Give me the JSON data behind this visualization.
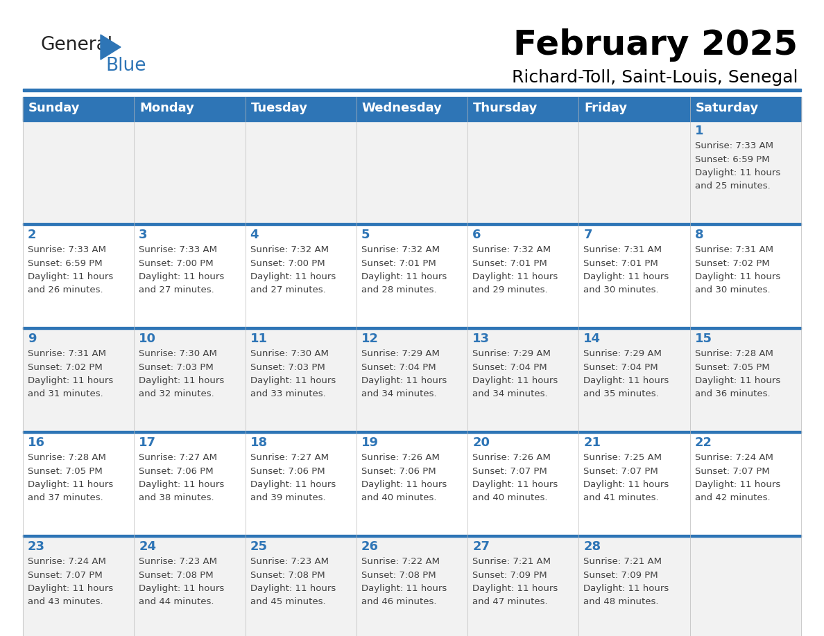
{
  "title": "February 2025",
  "subtitle": "Richard-Toll, Saint-Louis, Senegal",
  "days_of_week": [
    "Sunday",
    "Monday",
    "Tuesday",
    "Wednesday",
    "Thursday",
    "Friday",
    "Saturday"
  ],
  "header_bg": "#2E75B6",
  "header_text": "#FFFFFF",
  "cell_bg_light": "#F2F2F2",
  "cell_bg_white": "#FFFFFF",
  "separator_color": "#2E75B6",
  "text_color_dark": "#404040",
  "text_color_num": "#2E75B6",
  "logo_general_color": "#222222",
  "logo_blue_color": "#2E75B6",
  "calendar_data": [
    [
      {
        "day": "",
        "sunrise": "",
        "sunset": "",
        "daylight": ""
      },
      {
        "day": "",
        "sunrise": "",
        "sunset": "",
        "daylight": ""
      },
      {
        "day": "",
        "sunrise": "",
        "sunset": "",
        "daylight": ""
      },
      {
        "day": "",
        "sunrise": "",
        "sunset": "",
        "daylight": ""
      },
      {
        "day": "",
        "sunrise": "",
        "sunset": "",
        "daylight": ""
      },
      {
        "day": "",
        "sunrise": "",
        "sunset": "",
        "daylight": ""
      },
      {
        "day": "1",
        "sunrise": "7:33 AM",
        "sunset": "6:59 PM",
        "daylight": "11 hours and 25 minutes."
      }
    ],
    [
      {
        "day": "2",
        "sunrise": "7:33 AM",
        "sunset": "6:59 PM",
        "daylight": "11 hours and 26 minutes."
      },
      {
        "day": "3",
        "sunrise": "7:33 AM",
        "sunset": "7:00 PM",
        "daylight": "11 hours and 27 minutes."
      },
      {
        "day": "4",
        "sunrise": "7:32 AM",
        "sunset": "7:00 PM",
        "daylight": "11 hours and 27 minutes."
      },
      {
        "day": "5",
        "sunrise": "7:32 AM",
        "sunset": "7:01 PM",
        "daylight": "11 hours and 28 minutes."
      },
      {
        "day": "6",
        "sunrise": "7:32 AM",
        "sunset": "7:01 PM",
        "daylight": "11 hours and 29 minutes."
      },
      {
        "day": "7",
        "sunrise": "7:31 AM",
        "sunset": "7:01 PM",
        "daylight": "11 hours and 30 minutes."
      },
      {
        "day": "8",
        "sunrise": "7:31 AM",
        "sunset": "7:02 PM",
        "daylight": "11 hours and 30 minutes."
      }
    ],
    [
      {
        "day": "9",
        "sunrise": "7:31 AM",
        "sunset": "7:02 PM",
        "daylight": "11 hours and 31 minutes."
      },
      {
        "day": "10",
        "sunrise": "7:30 AM",
        "sunset": "7:03 PM",
        "daylight": "11 hours and 32 minutes."
      },
      {
        "day": "11",
        "sunrise": "7:30 AM",
        "sunset": "7:03 PM",
        "daylight": "11 hours and 33 minutes."
      },
      {
        "day": "12",
        "sunrise": "7:29 AM",
        "sunset": "7:04 PM",
        "daylight": "11 hours and 34 minutes."
      },
      {
        "day": "13",
        "sunrise": "7:29 AM",
        "sunset": "7:04 PM",
        "daylight": "11 hours and 34 minutes."
      },
      {
        "day": "14",
        "sunrise": "7:29 AM",
        "sunset": "7:04 PM",
        "daylight": "11 hours and 35 minutes."
      },
      {
        "day": "15",
        "sunrise": "7:28 AM",
        "sunset": "7:05 PM",
        "daylight": "11 hours and 36 minutes."
      }
    ],
    [
      {
        "day": "16",
        "sunrise": "7:28 AM",
        "sunset": "7:05 PM",
        "daylight": "11 hours and 37 minutes."
      },
      {
        "day": "17",
        "sunrise": "7:27 AM",
        "sunset": "7:06 PM",
        "daylight": "11 hours and 38 minutes."
      },
      {
        "day": "18",
        "sunrise": "7:27 AM",
        "sunset": "7:06 PM",
        "daylight": "11 hours and 39 minutes."
      },
      {
        "day": "19",
        "sunrise": "7:26 AM",
        "sunset": "7:06 PM",
        "daylight": "11 hours and 40 minutes."
      },
      {
        "day": "20",
        "sunrise": "7:26 AM",
        "sunset": "7:07 PM",
        "daylight": "11 hours and 40 minutes."
      },
      {
        "day": "21",
        "sunrise": "7:25 AM",
        "sunset": "7:07 PM",
        "daylight": "11 hours and 41 minutes."
      },
      {
        "day": "22",
        "sunrise": "7:24 AM",
        "sunset": "7:07 PM",
        "daylight": "11 hours and 42 minutes."
      }
    ],
    [
      {
        "day": "23",
        "sunrise": "7:24 AM",
        "sunset": "7:07 PM",
        "daylight": "11 hours and 43 minutes."
      },
      {
        "day": "24",
        "sunrise": "7:23 AM",
        "sunset": "7:08 PM",
        "daylight": "11 hours and 44 minutes."
      },
      {
        "day": "25",
        "sunrise": "7:23 AM",
        "sunset": "7:08 PM",
        "daylight": "11 hours and 45 minutes."
      },
      {
        "day": "26",
        "sunrise": "7:22 AM",
        "sunset": "7:08 PM",
        "daylight": "11 hours and 46 minutes."
      },
      {
        "day": "27",
        "sunrise": "7:21 AM",
        "sunset": "7:09 PM",
        "daylight": "11 hours and 47 minutes."
      },
      {
        "day": "28",
        "sunrise": "7:21 AM",
        "sunset": "7:09 PM",
        "daylight": "11 hours and 48 minutes."
      },
      {
        "day": "",
        "sunrise": "",
        "sunset": "",
        "daylight": ""
      }
    ]
  ]
}
